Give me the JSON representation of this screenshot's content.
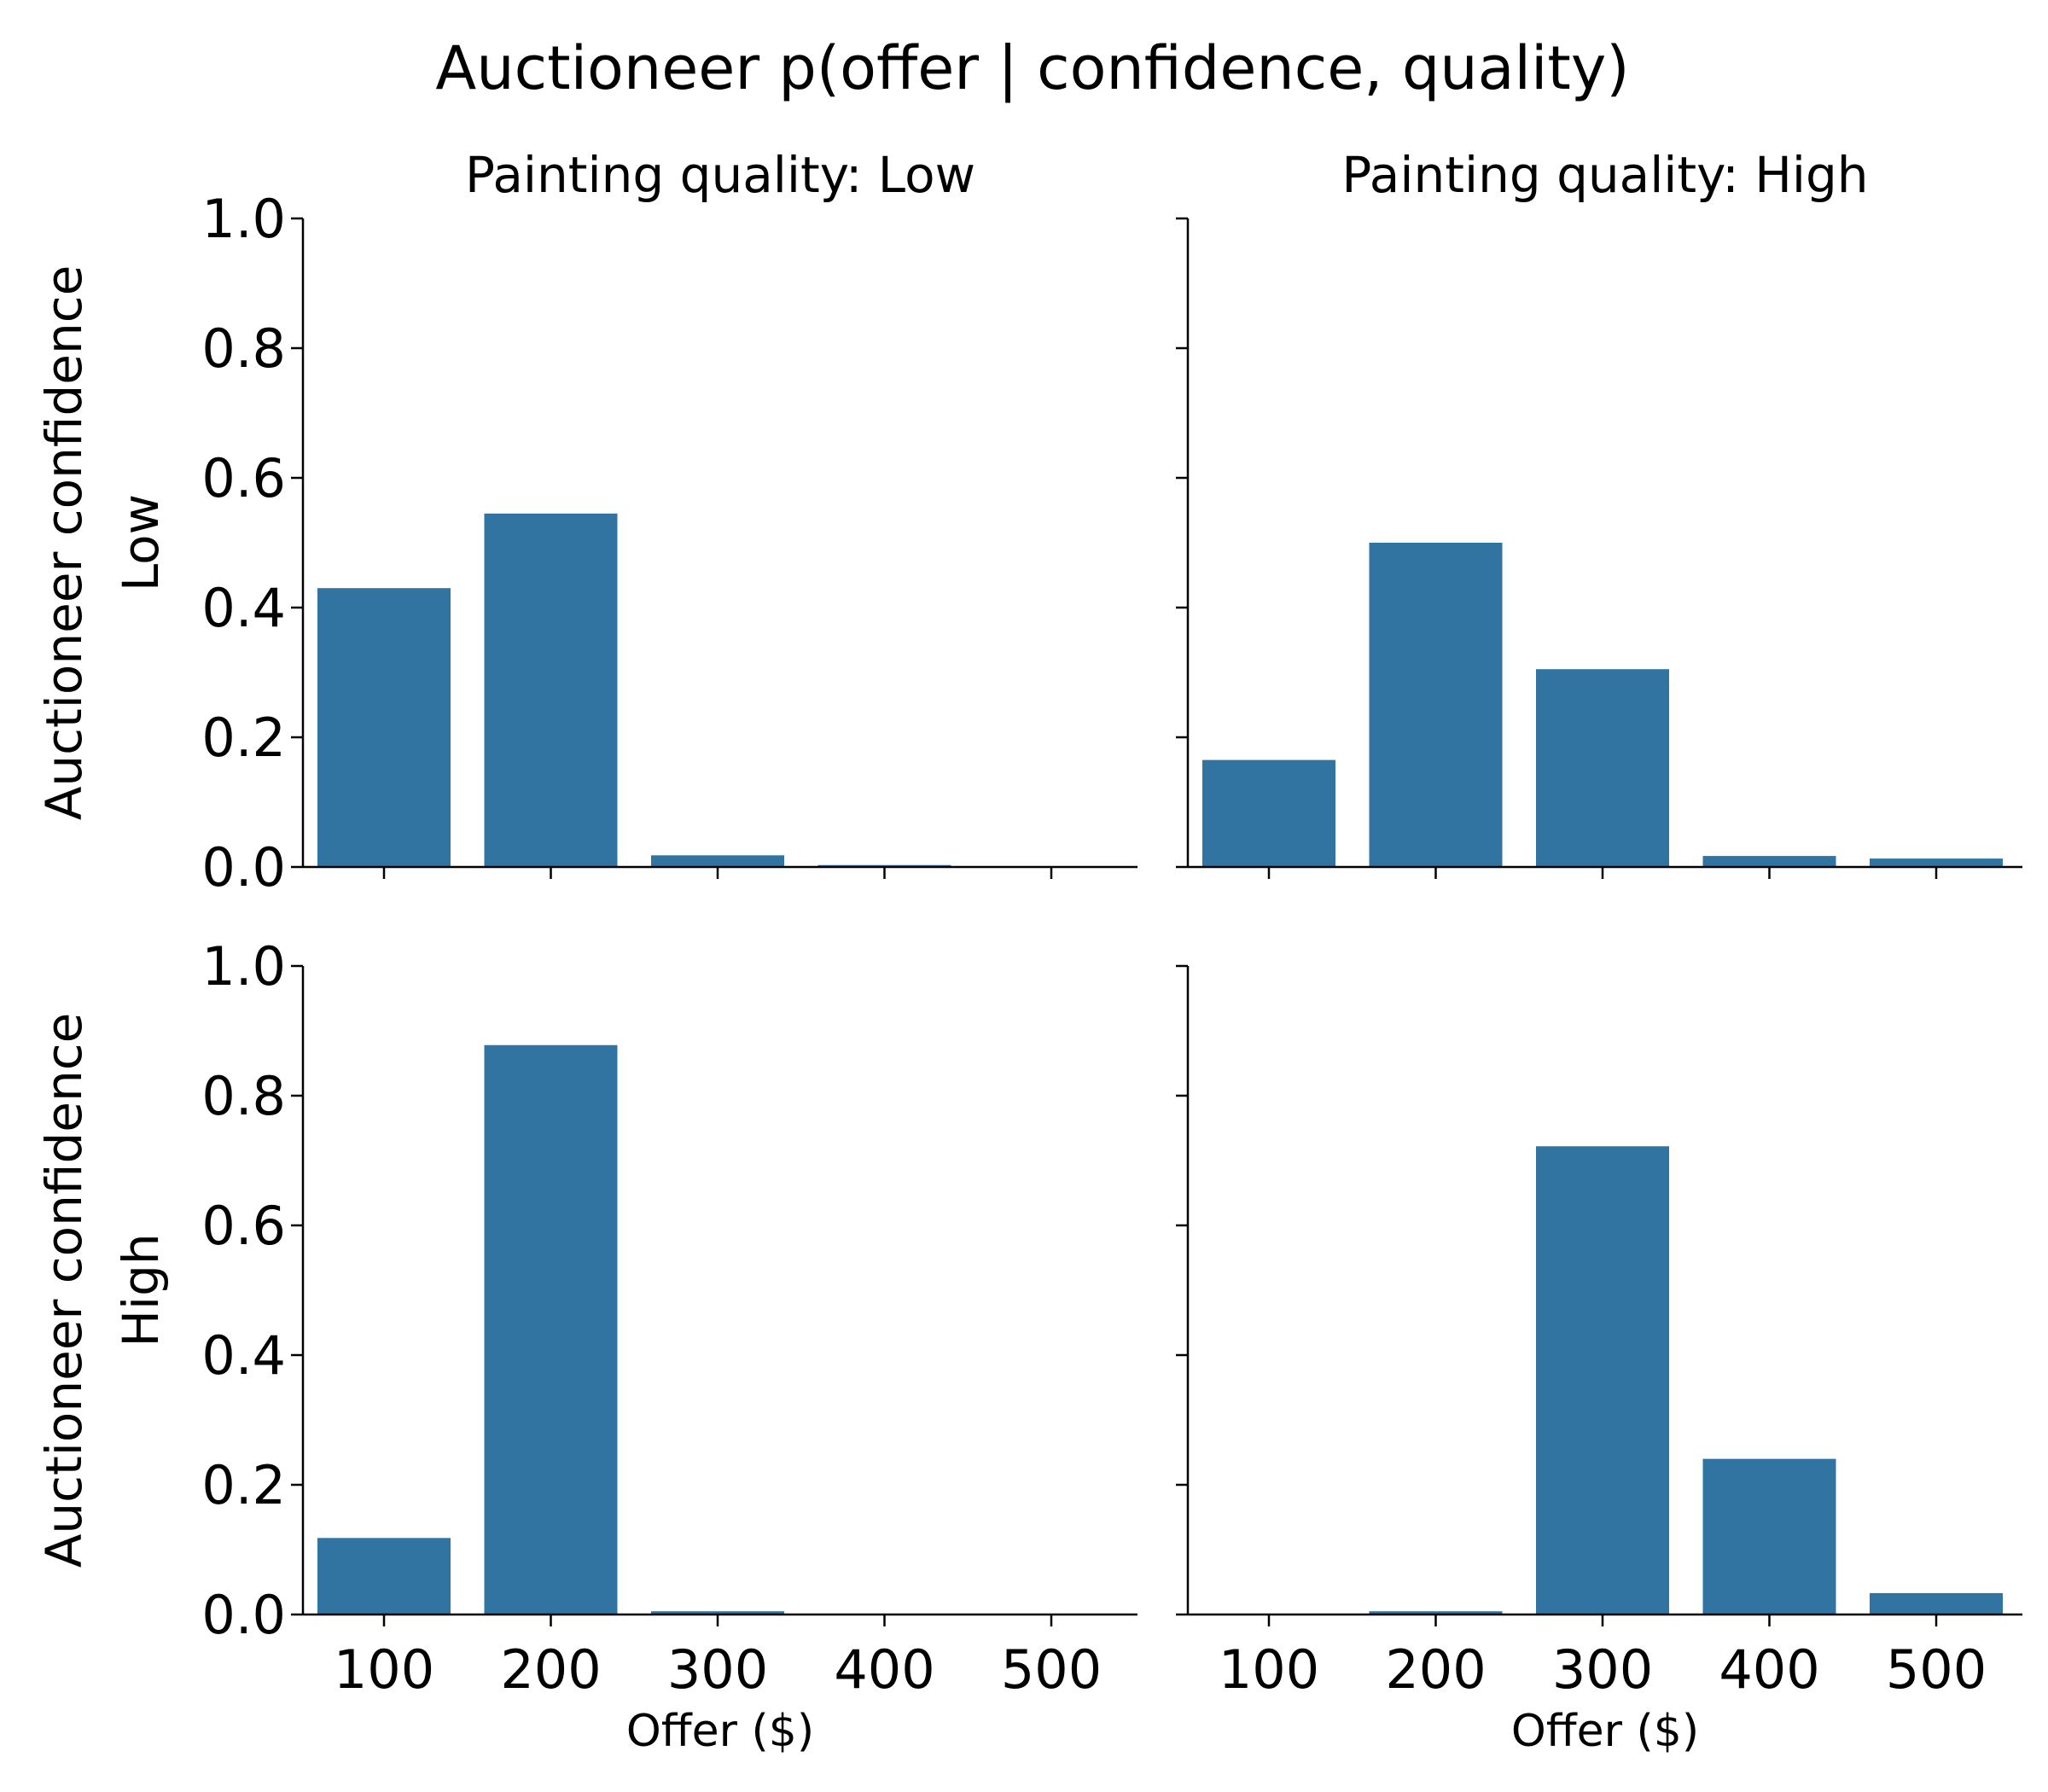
{
  "chart_data": {
    "type": "bar",
    "title": "Auctioneer p(offer | confidence, quality)",
    "bar_color": "#3274a1",
    "categories": [
      "100",
      "200",
      "300",
      "400",
      "500"
    ],
    "xlabel": "Offer ($)",
    "ylim": [
      0,
      1.0
    ],
    "yticks": [
      "0.0",
      "0.2",
      "0.4",
      "0.6",
      "0.8",
      "1.0"
    ],
    "grid": false,
    "panels": [
      {
        "row": 0,
        "col": 0,
        "title": "Painting quality: Low",
        "row_label": [
          "Auctioneer confidence",
          "Low"
        ],
        "values": [
          0.43,
          0.545,
          0.018,
          0.003,
          0.0
        ]
      },
      {
        "row": 0,
        "col": 1,
        "title": "Painting quality: High",
        "values": [
          0.165,
          0.5,
          0.305,
          0.017,
          0.013
        ]
      },
      {
        "row": 1,
        "col": 0,
        "row_label": [
          "Auctioneer confidence",
          "High"
        ],
        "values": [
          0.118,
          0.878,
          0.005,
          0.0,
          0.0
        ]
      },
      {
        "row": 1,
        "col": 1,
        "values": [
          0.0,
          0.005,
          0.722,
          0.24,
          0.033
        ]
      }
    ]
  }
}
